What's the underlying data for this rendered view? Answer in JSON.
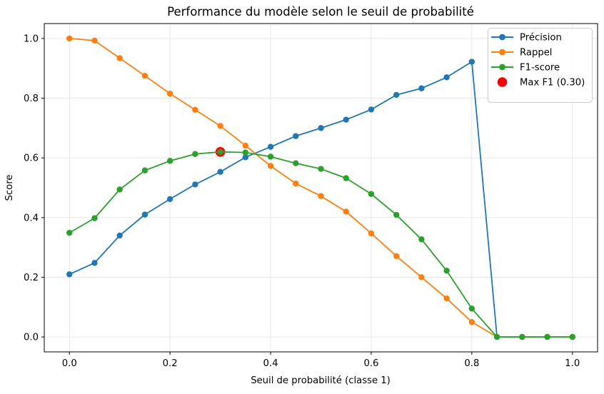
{
  "chart_data": {
    "type": "line",
    "title": "Performance du modèle selon le seuil de probabilité",
    "xlabel": "Seuil de probabilité (classe 1)",
    "ylabel": "Score",
    "x": [
      0.0,
      0.05,
      0.1,
      0.15,
      0.2,
      0.25,
      0.3,
      0.35,
      0.4,
      0.45,
      0.5,
      0.55,
      0.6,
      0.65,
      0.7,
      0.75,
      0.8,
      0.85,
      0.9,
      0.95,
      1.0
    ],
    "series": [
      {
        "name": "Précision",
        "color": "#1f77b4",
        "values": [
          0.21,
          0.248,
          0.34,
          0.41,
          0.462,
          0.511,
          0.553,
          0.602,
          0.637,
          0.673,
          0.7,
          0.728,
          0.762,
          0.811,
          0.833,
          0.87,
          0.922,
          0.0,
          0.0,
          0.0,
          0.0
        ]
      },
      {
        "name": "Rappel",
        "color": "#ff7f0e",
        "values": [
          1.0,
          0.993,
          0.934,
          0.875,
          0.815,
          0.761,
          0.707,
          0.641,
          0.573,
          0.514,
          0.472,
          0.42,
          0.347,
          0.271,
          0.2,
          0.129,
          0.05,
          0.0,
          0.0,
          0.0,
          0.0
        ]
      },
      {
        "name": "F1-score",
        "color": "#2ca02c",
        "values": [
          0.349,
          0.398,
          0.494,
          0.558,
          0.59,
          0.613,
          0.62,
          0.618,
          0.604,
          0.582,
          0.563,
          0.532,
          0.479,
          0.409,
          0.327,
          0.222,
          0.095,
          0.0,
          0.0,
          0.0,
          0.0
        ]
      }
    ],
    "max_f1_marker": {
      "label": "Max F1 (0.30)",
      "x": 0.3,
      "y": 0.62,
      "color": "#ff0000"
    },
    "xticks": [
      0.0,
      0.2,
      0.4,
      0.6,
      0.8,
      1.0
    ],
    "yticks": [
      0.0,
      0.2,
      0.4,
      0.6,
      0.8,
      1.0
    ],
    "xtick_labels": [
      "0.0",
      "0.2",
      "0.4",
      "0.6",
      "0.8",
      "1.0"
    ],
    "ytick_labels": [
      "0.0",
      "0.2",
      "0.4",
      "0.6",
      "0.8",
      "1.0"
    ],
    "xlim": [
      -0.05,
      1.05
    ],
    "ylim": [
      -0.05,
      1.05
    ],
    "grid": true,
    "grid_color": "#e6e6e6",
    "spine_color": "#000000",
    "legend_position": "upper right",
    "legend_entries": [
      "Précision",
      "Rappel",
      "F1-score",
      "Max F1 (0.30)"
    ],
    "legend_border_color": "#cccccc"
  }
}
